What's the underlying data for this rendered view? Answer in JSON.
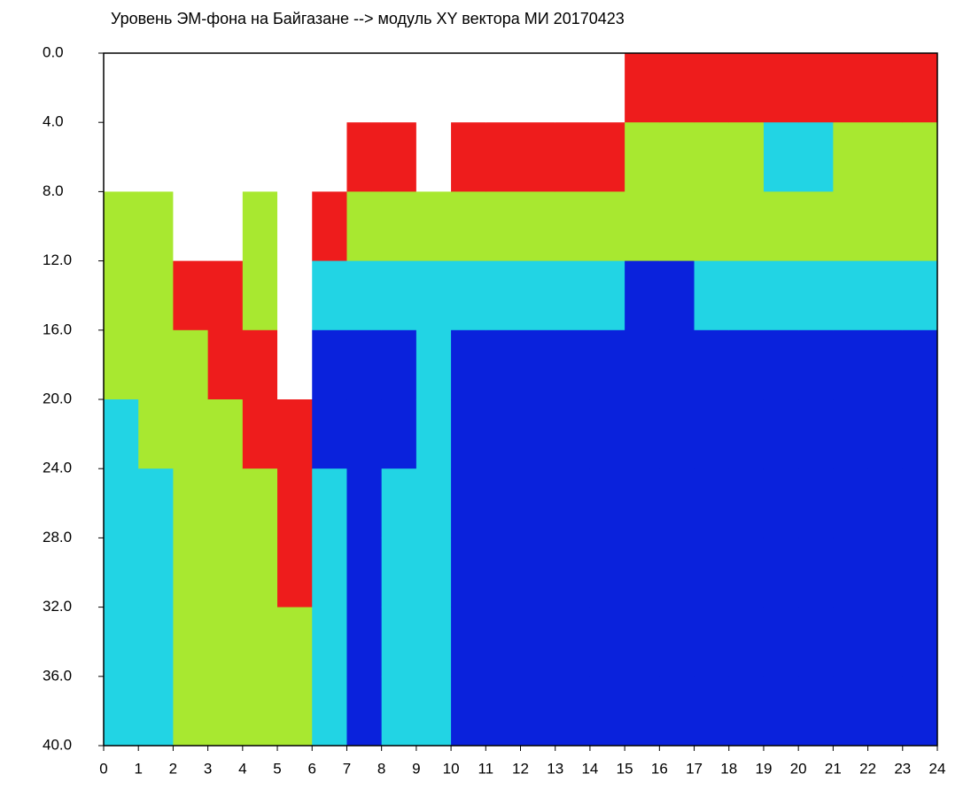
{
  "chart_data": {
    "type": "heatmap",
    "title": "Уровень ЭМ-фона на Байгазане   -->  модуль XY вектора МИ   20170423",
    "xlim": [
      0,
      24
    ],
    "ylim": [
      40,
      0
    ],
    "xticks": [
      0,
      1,
      2,
      3,
      4,
      5,
      6,
      7,
      8,
      9,
      10,
      11,
      12,
      13,
      14,
      15,
      16,
      17,
      18,
      19,
      20,
      21,
      22,
      23,
      24
    ],
    "yticks": [
      {
        "value": 0,
        "label": "0.0"
      },
      {
        "value": 4,
        "label": "4.0"
      },
      {
        "value": 8,
        "label": "8.0"
      },
      {
        "value": 12,
        "label": "12.0"
      },
      {
        "value": 16,
        "label": "16.0"
      },
      {
        "value": 20,
        "label": "20.0"
      },
      {
        "value": 24,
        "label": "24.0"
      },
      {
        "value": 28,
        "label": "28.0"
      },
      {
        "value": 32,
        "label": "32.0"
      },
      {
        "value": 36,
        "label": "36.0"
      },
      {
        "value": 40,
        "label": "40.0"
      }
    ],
    "x": [
      0,
      1,
      2,
      3,
      4,
      5,
      6,
      7,
      8,
      9,
      10,
      11,
      12,
      13,
      14,
      15,
      16,
      17,
      18,
      19,
      20,
      21,
      22,
      23,
      24
    ],
    "y": [
      0,
      4,
      8,
      12,
      16,
      20,
      24,
      28,
      32,
      36,
      40
    ],
    "colors": [
      "#ffffff",
      "#0a22dc",
      "#22d4e4",
      "#a8e830",
      "#ee1c1c"
    ],
    "z": [
      [
        0,
        0,
        3,
        3,
        3,
        2,
        2,
        2,
        2,
        2
      ],
      [
        0,
        0,
        3,
        3,
        3,
        3,
        2,
        2,
        2,
        2
      ],
      [
        0,
        0,
        0,
        4,
        3,
        3,
        3,
        3,
        3,
        3
      ],
      [
        0,
        0,
        0,
        4,
        4,
        3,
        3,
        3,
        3,
        3
      ],
      [
        0,
        0,
        3,
        3,
        4,
        4,
        3,
        3,
        3,
        3
      ],
      [
        0,
        0,
        0,
        0,
        0,
        4,
        4,
        4,
        3,
        3
      ],
      [
        0,
        0,
        4,
        2,
        1,
        1,
        2,
        2,
        2,
        2
      ],
      [
        0,
        4,
        3,
        2,
        1,
        1,
        1,
        1,
        1,
        1
      ],
      [
        0,
        4,
        3,
        2,
        1,
        1,
        2,
        2,
        2,
        2
      ],
      [
        0,
        0,
        3,
        2,
        2,
        2,
        2,
        2,
        2,
        2
      ],
      [
        0,
        4,
        3,
        2,
        1,
        1,
        1,
        1,
        1,
        1
      ],
      [
        0,
        4,
        3,
        2,
        1,
        1,
        1,
        1,
        1,
        1
      ],
      [
        0,
        4,
        3,
        2,
        1,
        1,
        1,
        1,
        1,
        1
      ],
      [
        0,
        4,
        3,
        2,
        1,
        1,
        1,
        1,
        1,
        1
      ],
      [
        0,
        4,
        3,
        2,
        1,
        1,
        1,
        1,
        1,
        1
      ],
      [
        4,
        3,
        3,
        1,
        1,
        1,
        1,
        1,
        1,
        1
      ],
      [
        4,
        3,
        3,
        1,
        1,
        1,
        1,
        1,
        1,
        1
      ],
      [
        4,
        3,
        3,
        2,
        1,
        1,
        1,
        1,
        1,
        1
      ],
      [
        4,
        3,
        3,
        2,
        1,
        1,
        1,
        1,
        1,
        1
      ],
      [
        4,
        2,
        3,
        2,
        1,
        1,
        1,
        1,
        1,
        1
      ],
      [
        4,
        2,
        3,
        2,
        1,
        1,
        1,
        1,
        1,
        1
      ],
      [
        4,
        3,
        3,
        2,
        1,
        1,
        1,
        1,
        1,
        1
      ],
      [
        4,
        3,
        3,
        2,
        1,
        1,
        1,
        1,
        1,
        1
      ],
      [
        4,
        3,
        3,
        2,
        1,
        1,
        1,
        1,
        1,
        1
      ]
    ]
  }
}
